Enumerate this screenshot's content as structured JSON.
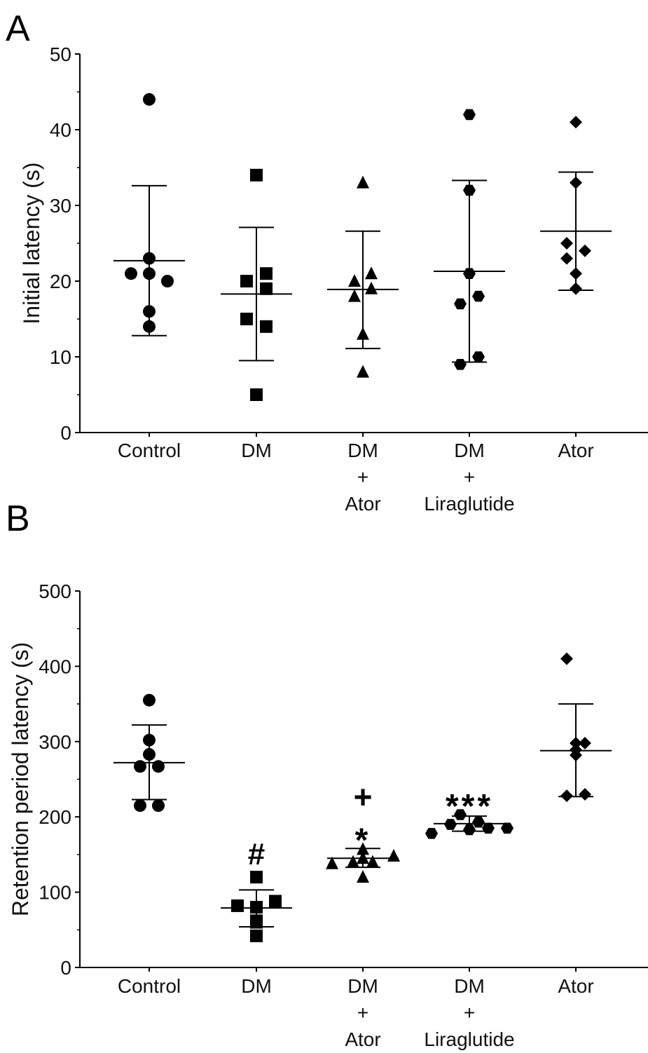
{
  "chart_data": [
    {
      "panel": "A",
      "type": "scatter",
      "title": "",
      "xlabel": "",
      "ylabel": "Initial latency (s)",
      "ylim": [
        0,
        50
      ],
      "yticks": [
        0,
        10,
        20,
        30,
        40,
        50
      ],
      "grid": false,
      "categories": [
        [
          "Control"
        ],
        [
          "DM"
        ],
        [
          "DM",
          "+",
          "Ator"
        ],
        [
          "DM",
          "+",
          "Liraglutide"
        ],
        [
          "Ator"
        ]
      ],
      "series": [
        {
          "name": "Control",
          "marker": "circle",
          "values": [
            44,
            23,
            21,
            21,
            20,
            16,
            14
          ],
          "mean": 22.7,
          "sd_upper": 32.6,
          "sd_lower": 12.8,
          "annotation": ""
        },
        {
          "name": "DM",
          "marker": "square",
          "values": [
            34,
            21,
            20,
            19,
            15,
            14,
            5
          ],
          "mean": 18.3,
          "sd_upper": 27.1,
          "sd_lower": 9.5,
          "annotation": ""
        },
        {
          "name": "DM + Ator",
          "marker": "triangle",
          "values": [
            33,
            21,
            20,
            19,
            18,
            13,
            8
          ],
          "mean": 18.9,
          "sd_upper": 26.6,
          "sd_lower": 11.1,
          "annotation": ""
        },
        {
          "name": "DM + Liraglutide",
          "marker": "hexagon",
          "values": [
            42,
            32,
            21,
            18,
            17,
            10,
            9
          ],
          "mean": 21.3,
          "sd_upper": 33.3,
          "sd_lower": 9.3,
          "annotation": ""
        },
        {
          "name": "Ator",
          "marker": "diamond",
          "values": [
            41,
            33,
            25,
            24,
            23,
            21,
            19
          ],
          "mean": 26.6,
          "sd_upper": 34.4,
          "sd_lower": 18.8,
          "annotation": ""
        }
      ]
    },
    {
      "panel": "B",
      "type": "scatter",
      "title": "",
      "xlabel": "",
      "ylabel": "Retention period latency (s)",
      "ylim": [
        0,
        500
      ],
      "yticks": [
        0,
        100,
        200,
        300,
        400,
        500
      ],
      "grid": false,
      "categories": [
        [
          "Control"
        ],
        [
          "DM"
        ],
        [
          "DM",
          "+",
          "Ator"
        ],
        [
          "DM",
          "+",
          "Liraglutide"
        ],
        [
          "Ator"
        ]
      ],
      "series": [
        {
          "name": "Control",
          "marker": "circle",
          "values": [
            355,
            302,
            283,
            267,
            267,
            215,
            215
          ],
          "mean": 272,
          "sd_upper": 322,
          "sd_lower": 223,
          "annotation": []
        },
        {
          "name": "DM",
          "marker": "square",
          "values": [
            120,
            88,
            82,
            80,
            62,
            60,
            42
          ],
          "mean": 79,
          "sd_upper": 103,
          "sd_lower": 54,
          "annotation": [
            "#"
          ]
        },
        {
          "name": "DM + Ator",
          "marker": "triangle",
          "values": [
            157,
            148,
            145,
            140,
            140,
            138,
            120
          ],
          "mean": 145,
          "sd_upper": 158,
          "sd_lower": 133,
          "annotation": [
            "+",
            "*"
          ]
        },
        {
          "name": "DM + Liraglutide",
          "marker": "hexagon",
          "values": [
            203,
            193,
            190,
            185,
            185,
            183,
            178
          ],
          "mean": 191,
          "sd_upper": 201,
          "sd_lower": 181,
          "annotation": [
            "***"
          ]
        },
        {
          "name": "Ator",
          "marker": "diamond",
          "values": [
            410,
            298,
            298,
            289,
            282,
            230,
            228
          ],
          "mean": 288,
          "sd_upper": 350,
          "sd_lower": 227,
          "annotation": []
        }
      ]
    }
  ],
  "colors": {
    "ink": "#000000",
    "background": "#ffffff"
  }
}
